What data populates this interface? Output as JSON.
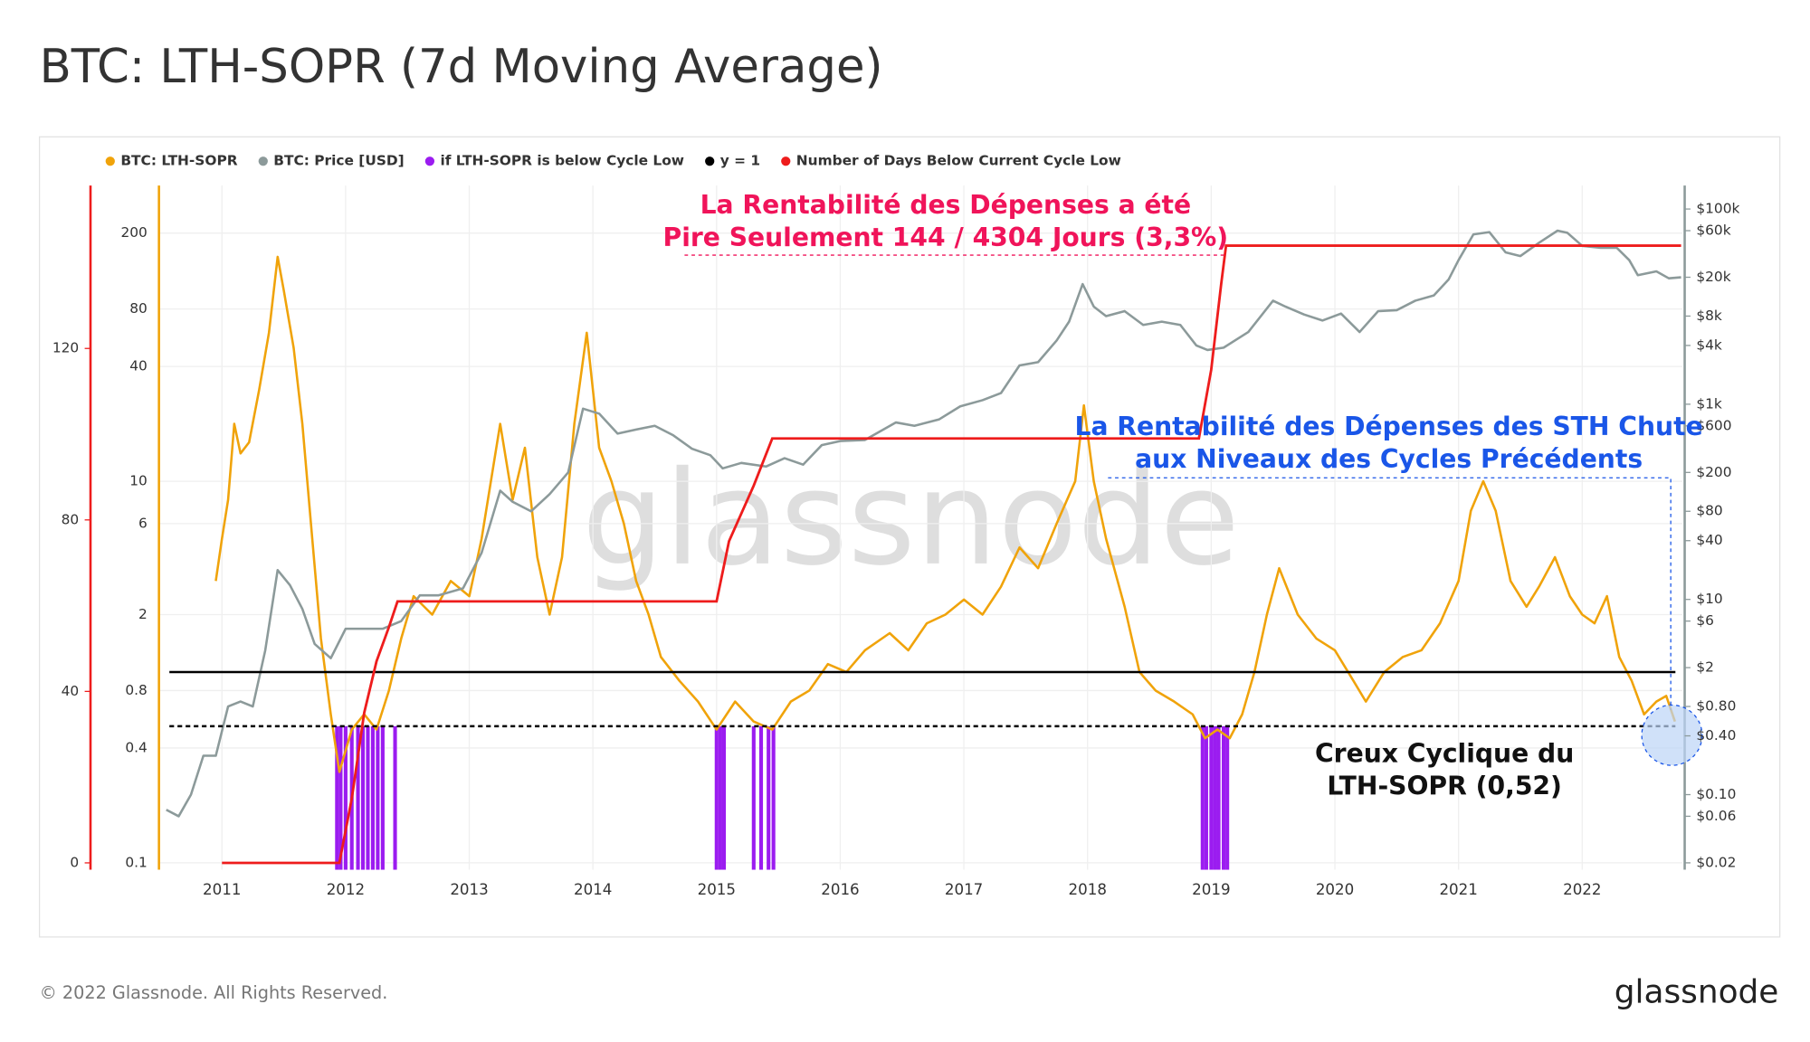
{
  "chart_data": {
    "type": "line",
    "title": "BTC: LTH-SOPR (7d Moving Average)",
    "footer": "© 2022 Glassnode. All Rights Reserved.",
    "brand": "glassnode",
    "watermark": "glassnode",
    "xlim": [
      2010.5,
      2022.81
    ],
    "xticks": [
      2011,
      2012,
      2013,
      2014,
      2015,
      2016,
      2017,
      2018,
      2019,
      2020,
      2021,
      2022
    ],
    "ylim": [
      0.092,
      355
    ],
    "ylog": true,
    "yticks": [
      0.1,
      0.4,
      0.8,
      2,
      6,
      10,
      40,
      80,
      200
    ],
    "y2lim": [
      0.017,
      174000
    ],
    "y2log": true,
    "y2ticks": [
      {
        "value": 100000,
        "label": "$100k"
      },
      {
        "value": 60000,
        "label": "$60k"
      },
      {
        "value": 20000,
        "label": "$20k"
      },
      {
        "value": 8000,
        "label": "$8k"
      },
      {
        "value": 4000,
        "label": "$4k"
      },
      {
        "value": 1000,
        "label": "$1k"
      },
      {
        "value": 600,
        "label": "$600"
      },
      {
        "value": 200,
        "label": "$200"
      },
      {
        "value": 80,
        "label": "$80"
      },
      {
        "value": 40,
        "label": "$40"
      },
      {
        "value": 10,
        "label": "$10"
      },
      {
        "value": 6,
        "label": "$6"
      },
      {
        "value": 2,
        "label": "$2"
      },
      {
        "value": 0.8,
        "label": "$0.80"
      },
      {
        "value": 0.4,
        "label": "$0.40"
      },
      {
        "value": 0.1,
        "label": "$0.10"
      },
      {
        "value": 0.06,
        "label": "$0.06"
      },
      {
        "value": 0.02,
        "label": "$0.02"
      }
    ],
    "y3lim": [
      -1.6,
      158
    ],
    "y3ticks": [
      0,
      40,
      80,
      120
    ],
    "grid": true,
    "legend": "top-left",
    "cycle_low": 0.52,
    "series": [
      {
        "name": "BTC: LTH-SOPR",
        "color": "#f0a30a",
        "axis": "y",
        "type": "line",
        "x": [
          2010.95,
          2011.0,
          2011.05,
          2011.1,
          2011.15,
          2011.22,
          2011.3,
          2011.38,
          2011.45,
          2011.5,
          2011.58,
          2011.65,
          2011.72,
          2011.8,
          2011.88,
          2011.95,
          2012.05,
          2012.15,
          2012.25,
          2012.35,
          2012.45,
          2012.55,
          2012.7,
          2012.85,
          2013.0,
          2013.1,
          2013.25,
          2013.35,
          2013.45,
          2013.55,
          2013.65,
          2013.75,
          2013.85,
          2013.95,
          2014.05,
          2014.15,
          2014.25,
          2014.35,
          2014.45,
          2014.55,
          2014.7,
          2014.85,
          2015.0,
          2015.15,
          2015.3,
          2015.45,
          2015.6,
          2015.75,
          2015.9,
          2016.05,
          2016.2,
          2016.4,
          2016.55,
          2016.7,
          2016.85,
          2017.0,
          2017.15,
          2017.3,
          2017.45,
          2017.6,
          2017.75,
          2017.9,
          2017.97,
          2018.05,
          2018.15,
          2018.3,
          2018.42,
          2018.55,
          2018.7,
          2018.85,
          2018.95,
          2019.05,
          2019.15,
          2019.25,
          2019.35,
          2019.45,
          2019.55,
          2019.7,
          2019.85,
          2020.0,
          2020.15,
          2020.25,
          2020.4,
          2020.55,
          2020.7,
          2020.85,
          2021.0,
          2021.1,
          2021.2,
          2021.3,
          2021.42,
          2021.55,
          2021.65,
          2021.78,
          2021.9,
          2022.0,
          2022.1,
          2022.2,
          2022.3,
          2022.4,
          2022.5,
          2022.6,
          2022.68,
          2022.75
        ],
        "values": [
          3,
          5,
          8,
          20,
          14,
          16,
          30,
          60,
          150,
          100,
          50,
          20,
          6,
          1.5,
          0.6,
          0.3,
          0.5,
          0.6,
          0.5,
          0.8,
          1.5,
          2.5,
          2,
          3,
          2.5,
          5,
          20,
          8,
          15,
          4,
          2,
          4,
          20,
          60,
          15,
          10,
          6,
          3,
          2,
          1.2,
          0.9,
          0.7,
          0.5,
          0.7,
          0.55,
          0.5,
          0.7,
          0.8,
          1.1,
          1.0,
          1.3,
          1.6,
          1.3,
          1.8,
          2.0,
          2.4,
          2.0,
          2.8,
          4.5,
          3.5,
          6,
          10,
          25,
          10,
          5,
          2.2,
          1.0,
          0.8,
          0.7,
          0.6,
          0.45,
          0.5,
          0.45,
          0.6,
          1.0,
          2.0,
          3.5,
          2.0,
          1.5,
          1.3,
          0.9,
          0.7,
          1.0,
          1.2,
          1.3,
          1.8,
          3,
          7,
          10,
          7,
          3,
          2.2,
          2.8,
          4,
          2.5,
          2.0,
          1.8,
          2.5,
          1.2,
          0.9,
          0.6,
          0.7,
          0.75,
          0.55
        ]
      },
      {
        "name": "BTC: Price [USD]",
        "color": "#8c9a9a",
        "axis": "y2",
        "type": "line",
        "x": [
          2010.55,
          2010.65,
          2010.75,
          2010.85,
          2010.95,
          2011.05,
          2011.15,
          2011.25,
          2011.35,
          2011.45,
          2011.55,
          2011.65,
          2011.75,
          2011.88,
          2012.0,
          2012.15,
          2012.3,
          2012.45,
          2012.6,
          2012.75,
          2012.95,
          2013.1,
          2013.25,
          2013.35,
          2013.5,
          2013.65,
          2013.8,
          2013.92,
          2014.05,
          2014.2,
          2014.35,
          2014.5,
          2014.65,
          2014.8,
          2014.95,
          2015.05,
          2015.2,
          2015.4,
          2015.55,
          2015.7,
          2015.85,
          2016.0,
          2016.2,
          2016.45,
          2016.6,
          2016.8,
          2016.97,
          2017.15,
          2017.3,
          2017.45,
          2017.6,
          2017.75,
          2017.85,
          2017.96,
          2018.05,
          2018.15,
          2018.3,
          2018.45,
          2018.6,
          2018.75,
          2018.88,
          2018.97,
          2019.1,
          2019.3,
          2019.5,
          2019.6,
          2019.75,
          2019.9,
          2020.05,
          2020.2,
          2020.35,
          2020.5,
          2020.65,
          2020.8,
          2020.92,
          2021.0,
          2021.12,
          2021.25,
          2021.38,
          2021.5,
          2021.65,
          2021.8,
          2021.88,
          2022.0,
          2022.15,
          2022.28,
          2022.38,
          2022.45,
          2022.6,
          2022.7,
          2022.8
        ],
        "values": [
          0.07,
          0.06,
          0.1,
          0.25,
          0.25,
          0.8,
          0.9,
          0.8,
          3,
          20,
          14,
          8,
          3.5,
          2.5,
          5,
          5,
          5,
          6,
          11,
          11,
          13,
          30,
          130,
          100,
          80,
          120,
          200,
          900,
          800,
          500,
          550,
          600,
          480,
          350,
          300,
          220,
          250,
          230,
          280,
          240,
          380,
          420,
          430,
          650,
          600,
          700,
          950,
          1100,
          1300,
          2500,
          2700,
          4500,
          7000,
          17000,
          10000,
          8000,
          9000,
          6500,
          7000,
          6500,
          4000,
          3600,
          3800,
          5500,
          11500,
          10000,
          8300,
          7200,
          8500,
          5500,
          9000,
          9200,
          11500,
          13000,
          19000,
          30000,
          55000,
          58000,
          36000,
          33000,
          45000,
          60000,
          57000,
          42000,
          40000,
          40000,
          30000,
          21000,
          23000,
          19500,
          20000
        ]
      },
      {
        "name": "if LTH-SOPR is below Cycle Low",
        "color": "#9b1cf0",
        "axis": "y",
        "type": "bar",
        "x": [
          2011.93,
          2011.96,
          2012.0,
          2012.05,
          2012.1,
          2012.14,
          2012.18,
          2012.22,
          2012.26,
          2012.3,
          2012.4,
          2015.0,
          2015.03,
          2015.06,
          2015.3,
          2015.36,
          2015.42,
          2015.46,
          2018.93,
          2018.96,
          2019.0,
          2019.03,
          2019.06,
          2019.1,
          2019.13
        ],
        "values": [
          0.52,
          0.52,
          0.52,
          0.52,
          0.52,
          0.52,
          0.52,
          0.52,
          0.52,
          0.52,
          0.52,
          0.52,
          0.52,
          0.52,
          0.52,
          0.52,
          0.52,
          0.52,
          0.52,
          0.52,
          0.52,
          0.52,
          0.52,
          0.52,
          0.52
        ]
      },
      {
        "name": "y = 1",
        "color": "#000000",
        "axis": "y",
        "type": "hline",
        "value": 1
      },
      {
        "name": "Number of Days Below Current Cycle Low",
        "color": "#ee1c1c",
        "axis": "y3",
        "type": "step",
        "x": [
          2011.0,
          2011.95,
          2012.05,
          2012.15,
          2012.25,
          2012.35,
          2012.42,
          2015.0,
          2015.1,
          2015.3,
          2015.45,
          2018.9,
          2019.0,
          2019.08,
          2019.12,
          2022.8
        ],
        "values": [
          0,
          0,
          15,
          35,
          47,
          55,
          61,
          61,
          75,
          88,
          99,
          99,
          115,
          135,
          144,
          144
        ]
      }
    ],
    "annotations": [
      {
        "text": "La Rentabilité des Dépenses a été",
        "color": "#f0145a"
      },
      {
        "text": "Pire Seulement 144 / 4304 Jours (3,3%)",
        "color": "#f0145a"
      },
      {
        "text": "La Rentabilité des Dépenses des STH Chute",
        "color": "#1a56e8"
      },
      {
        "text": "aux Niveaux des Cycles Précédents",
        "color": "#1a56e8"
      },
      {
        "text": "Creux Cyclique du",
        "color": "#111111"
      },
      {
        "text": "LTH-SOPR (0,52)",
        "color": "#111111"
      }
    ]
  }
}
